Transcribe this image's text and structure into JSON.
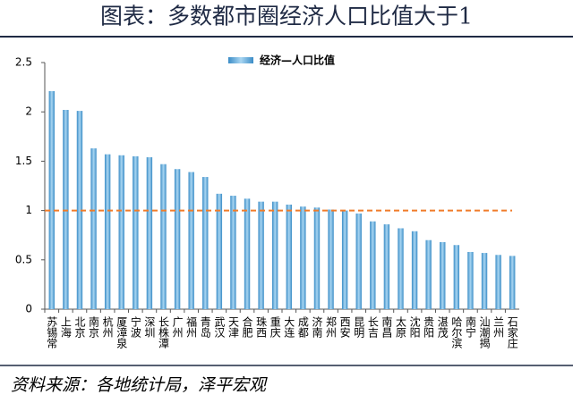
{
  "chart_data": {
    "type": "bar",
    "title": "图表：多数都市圈经济人口比值大于1",
    "source": "资料来源：各地统计局，泽平宏观",
    "categories": [
      "苏锡常",
      "上海",
      "北京",
      "南京",
      "杭州",
      "厦漳泉",
      "宁波",
      "深圳",
      "长株潭",
      "广州",
      "福州",
      "青岛",
      "武汉",
      "天津",
      "合肥",
      "珠西",
      "重庆",
      "大连",
      "成都",
      "济南",
      "郑州",
      "西安",
      "昆明",
      "长吉",
      "南昌",
      "太原",
      "沈阳",
      "贵阳",
      "湛茂",
      "哈尔滨",
      "南宁",
      "汕潮揭",
      "兰州",
      "石家庄"
    ],
    "series": [
      {
        "name": "经济—人口比值",
        "color": "#3a8cc6",
        "values": [
          2.21,
          2.02,
          2.01,
          1.63,
          1.57,
          1.56,
          1.55,
          1.54,
          1.47,
          1.42,
          1.39,
          1.34,
          1.17,
          1.15,
          1.12,
          1.09,
          1.09,
          1.06,
          1.04,
          1.03,
          1.01,
          1.0,
          0.97,
          0.89,
          0.86,
          0.82,
          0.79,
          0.7,
          0.68,
          0.65,
          0.58,
          0.57,
          0.55,
          0.54
        ]
      }
    ],
    "reference_line": {
      "value": 1,
      "color": "#f07c2a"
    },
    "ylim": [
      0,
      2.5
    ],
    "yticks": [
      0,
      0.5,
      1,
      1.5,
      2,
      2.5
    ],
    "grid": false,
    "legend": "top"
  }
}
